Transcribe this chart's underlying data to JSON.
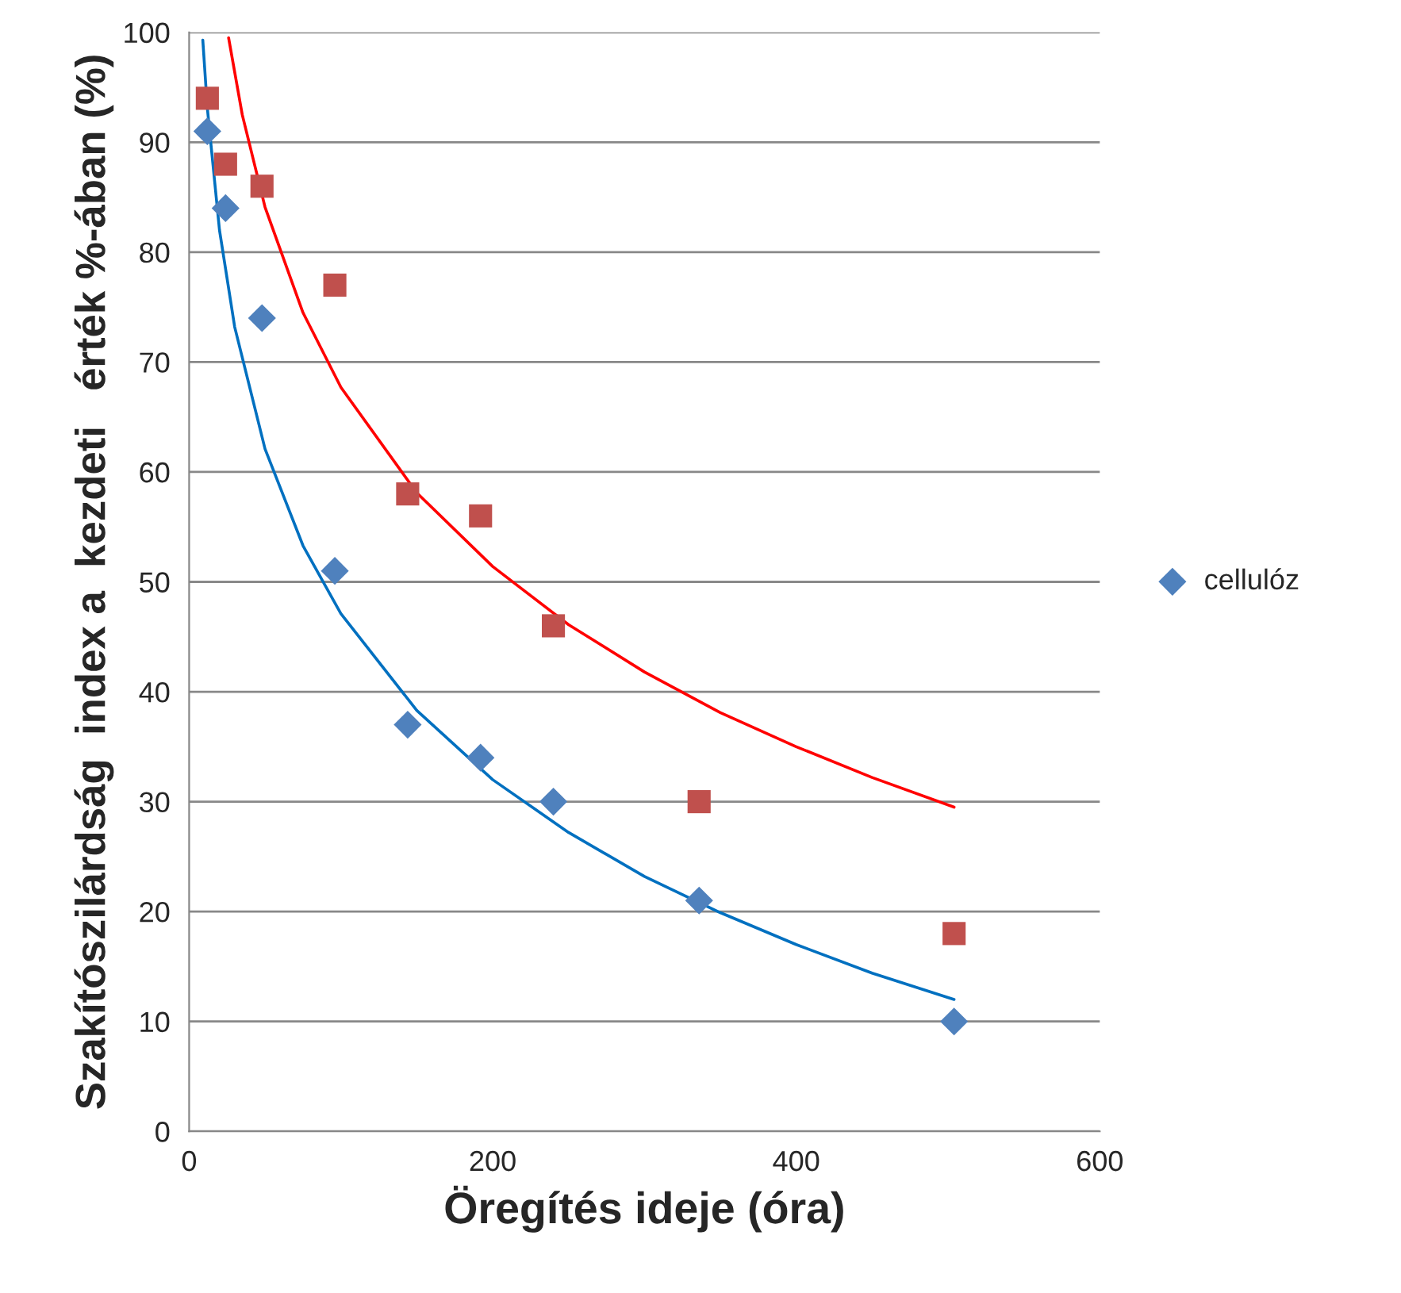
{
  "chart_data": {
    "type": "scatter",
    "xlabel": "Öregítés ideje (óra)",
    "ylabel": "Szakítószilárdság  index a  kezdeti   érték %-ában (%)",
    "xlim": [
      0,
      600
    ],
    "xticks": [
      0,
      200,
      400,
      600
    ],
    "ylim": [
      0,
      100
    ],
    "yticks": [
      0,
      10,
      20,
      30,
      40,
      50,
      60,
      70,
      80,
      90,
      100
    ],
    "grid": "y",
    "legend": "right",
    "series": [
      {
        "name": "cellulóz",
        "type": "scatter",
        "marker": "diamond",
        "color": "#4f81bd",
        "x": [
          12,
          24,
          48,
          96,
          144,
          192,
          240,
          336,
          504
        ],
        "values": [
          91,
          84,
          74,
          51,
          37,
          34,
          30,
          21,
          10
        ]
      },
      {
        "type": "scatter",
        "marker": "square",
        "color": "#c0504d",
        "x": [
          12,
          24,
          48,
          96,
          144,
          192,
          240,
          336,
          504
        ],
        "values": [
          94,
          88,
          86,
          77,
          58,
          56,
          46,
          30,
          18
        ]
      },
      {
        "type": "line",
        "marker": "none",
        "color": "#0070c0",
        "x": [
          9,
          12,
          20,
          30,
          50,
          75,
          100,
          150,
          200,
          250,
          300,
          350,
          400,
          450,
          504
        ],
        "values": [
          99.3,
          93.1,
          82,
          73.2,
          62.1,
          53.3,
          47.1,
          38.3,
          32,
          27.2,
          23.2,
          19.9,
          17,
          14.4,
          12
        ]
      },
      {
        "type": "line",
        "marker": "none",
        "color": "#ff0000",
        "x": [
          26,
          35,
          50,
          75,
          100,
          150,
          200,
          250,
          300,
          350,
          400,
          450,
          504
        ],
        "values": [
          99.5,
          92.5,
          84.1,
          74.5,
          67.7,
          58.1,
          51.4,
          46.1,
          41.8,
          38.1,
          35,
          32.2,
          29.5
        ]
      }
    ]
  }
}
